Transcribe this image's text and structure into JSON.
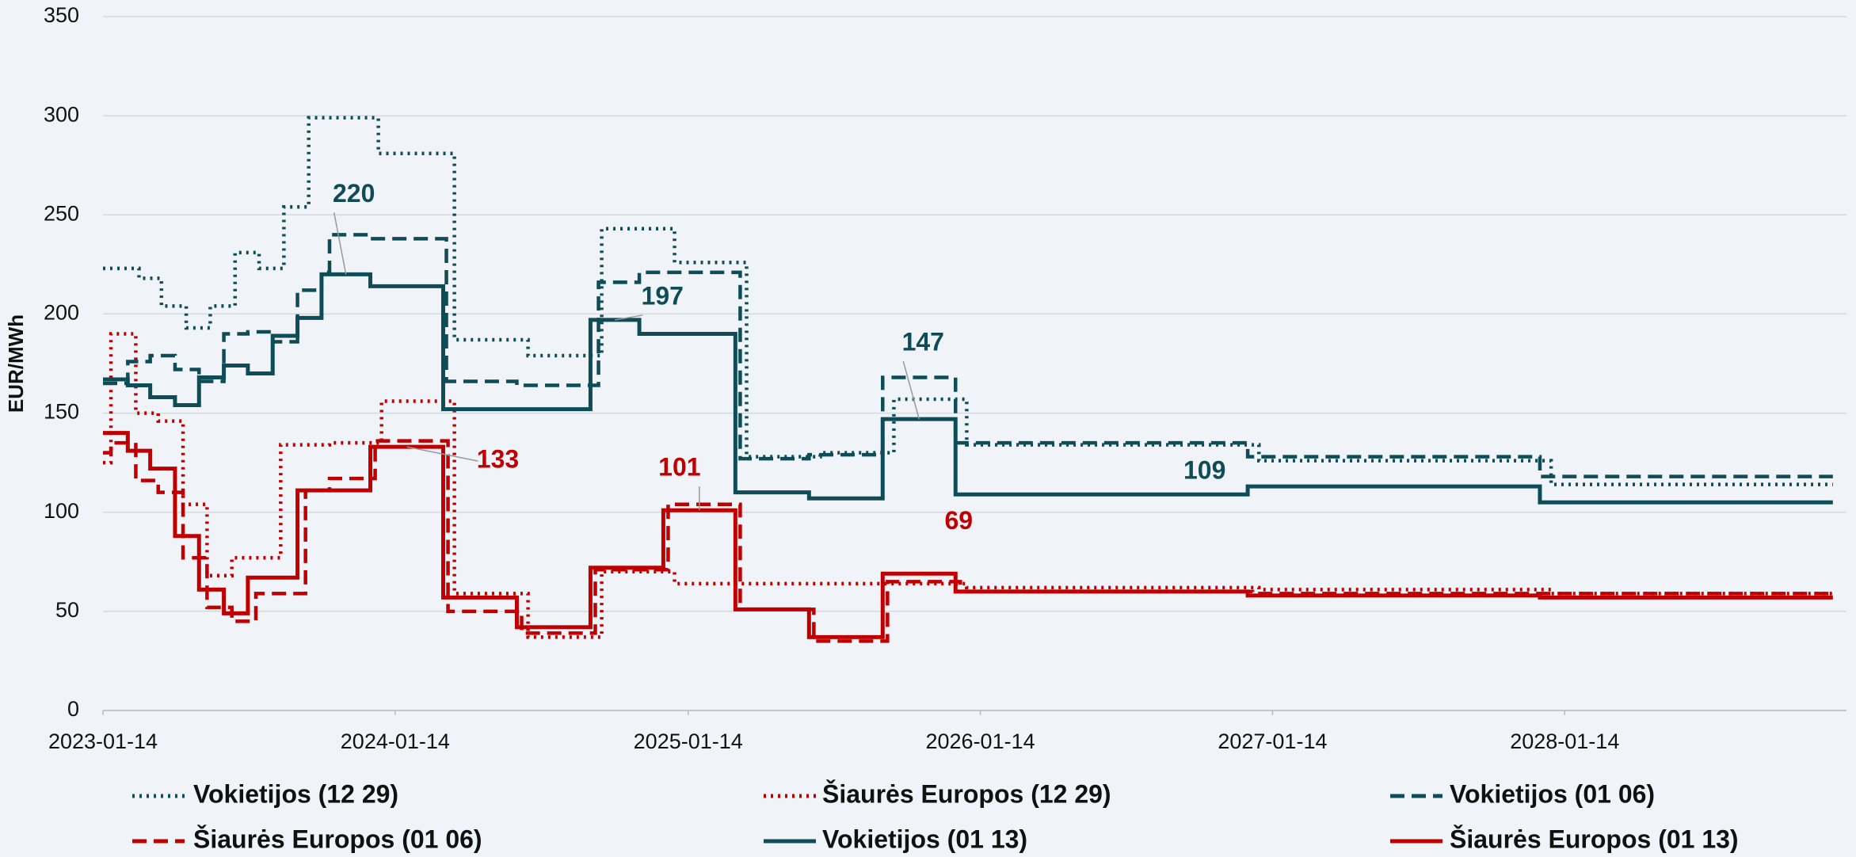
{
  "chart_data": {
    "type": "step-line",
    "ylabel": "EUR/MWh",
    "xlim": [
      "2023-01-14",
      "2028-12-31"
    ],
    "xticks": [
      "2023-01-14",
      "2024-01-14",
      "2025-01-14",
      "2026-01-14",
      "2027-01-14",
      "2028-01-14"
    ],
    "ylim": [
      0,
      350
    ],
    "yticks": [
      0,
      50,
      100,
      150,
      200,
      250,
      300,
      350
    ],
    "grid": true,
    "legend": "bottom",
    "series": [
      {
        "name": "Vokietijos (12 29)",
        "color": "#0e4d57",
        "style": "dotted",
        "x": [
          "2023-01-14",
          "2023-02-28",
          "2023-03-28",
          "2023-04-28",
          "2023-05-28",
          "2023-06-28",
          "2023-07-28",
          "2023-08-28",
          "2023-09-28",
          "2023-12-24",
          "2024-03-28",
          "2024-06-28",
          "2024-09-28",
          "2024-12-28",
          "2025-03-28",
          "2025-06-28",
          "2025-09-28",
          "2025-12-28",
          "2026-12-28",
          "2027-12-28",
          "2028-12-14"
        ],
        "values": [
          223,
          218,
          204,
          193,
          204,
          231,
          223,
          254,
          299,
          281,
          187,
          179,
          243,
          226,
          128,
          130,
          157,
          134,
          126,
          114,
          114
        ]
      },
      {
        "name": "Šiaurės Europos (12 29)",
        "color": "#c00000",
        "style": "dotted",
        "x": [
          "2023-01-14",
          "2023-01-24",
          "2023-02-24",
          "2023-03-24",
          "2023-04-24",
          "2023-05-24",
          "2023-06-24",
          "2023-08-24",
          "2023-10-24",
          "2023-12-28",
          "2024-03-28",
          "2024-06-28",
          "2024-09-28",
          "2024-12-28",
          "2025-12-28",
          "2026-12-28",
          "2027-12-28",
          "2028-12-14"
        ],
        "values": [
          125,
          190,
          150,
          146,
          104,
          68,
          77,
          134,
          135,
          156,
          59,
          37,
          70,
          64,
          62,
          61,
          59,
          60
        ]
      },
      {
        "name": "Vokietijos (01 06)",
        "color": "#0e4d57",
        "style": "dashed",
        "x": [
          "2023-01-14",
          "2023-02-14",
          "2023-03-14",
          "2023-04-14",
          "2023-05-14",
          "2023-06-14",
          "2023-07-14",
          "2023-08-14",
          "2023-09-14",
          "2023-10-14",
          "2023-10-24",
          "2023-12-14",
          "2024-03-18",
          "2024-06-14",
          "2024-09-24",
          "2024-11-14",
          "2025-03-20",
          "2025-06-14",
          "2025-09-14",
          "2025-12-14",
          "2026-12-14",
          "2027-12-14",
          "2028-12-14"
        ],
        "values": [
          165,
          176,
          179,
          172,
          166,
          190,
          191,
          186,
          212,
          221,
          240,
          238,
          166,
          164,
          216,
          221,
          127,
          129,
          168,
          135,
          128,
          118,
          118
        ]
      },
      {
        "name": "Šiaurės Europos (01 06)",
        "color": "#c00000",
        "style": "dashed",
        "x": [
          "2023-01-14",
          "2023-01-24",
          "2023-02-24",
          "2023-03-24",
          "2023-04-24",
          "2023-05-24",
          "2023-06-24",
          "2023-07-24",
          "2023-09-24",
          "2023-10-24",
          "2023-12-20",
          "2024-03-20",
          "2024-06-20",
          "2024-09-20",
          "2024-12-20",
          "2025-03-20",
          "2025-06-20",
          "2025-09-20",
          "2025-12-20",
          "2026-12-20",
          "2027-12-20",
          "2028-12-14"
        ],
        "values": [
          130,
          135,
          116,
          110,
          77,
          52,
          45,
          59,
          111,
          117,
          136,
          50,
          39,
          71,
          104,
          51,
          35,
          65,
          60,
          59,
          59,
          59
        ]
      },
      {
        "name": "Vokietijos (01 13)",
        "color": "#0e4d57",
        "style": "solid",
        "x": [
          "2023-01-14",
          "2023-02-14",
          "2023-03-14",
          "2023-04-14",
          "2023-05-14",
          "2023-06-14",
          "2023-07-14",
          "2023-08-14",
          "2023-09-14",
          "2023-10-14",
          "2023-12-14",
          "2024-03-14",
          "2024-09-14",
          "2024-11-14",
          "2025-03-14",
          "2025-06-14",
          "2025-09-14",
          "2025-12-14",
          "2026-12-14",
          "2027-12-14",
          "2028-12-14"
        ],
        "values": [
          167,
          164,
          158,
          154,
          168,
          174,
          170,
          189,
          198,
          220,
          214,
          152,
          197,
          190,
          110,
          107,
          147,
          109,
          113,
          105,
          105
        ]
      },
      {
        "name": "Šiaurės Europos (01 13)",
        "color": "#c00000",
        "style": "solid",
        "x": [
          "2023-01-14",
          "2023-02-14",
          "2023-03-14",
          "2023-04-14",
          "2023-05-14",
          "2023-06-14",
          "2023-07-14",
          "2023-09-14",
          "2023-12-14",
          "2024-03-14",
          "2024-06-14",
          "2024-09-14",
          "2024-12-14",
          "2025-03-14",
          "2025-06-14",
          "2025-09-14",
          "2025-12-14",
          "2026-12-14",
          "2027-12-14",
          "2028-12-14"
        ],
        "values": [
          140,
          131,
          122,
          88,
          61,
          49,
          67,
          111,
          133,
          57,
          42,
          72,
          101,
          51,
          37,
          69,
          60,
          58,
          57,
          57
        ]
      }
    ],
    "annotations": [
      {
        "series": 4,
        "point": 9
      },
      {
        "series": 4,
        "point": 12
      },
      {
        "series": 4,
        "point": 16
      },
      {
        "series": 4,
        "point": 17
      },
      {
        "series": 5,
        "point": 8
      },
      {
        "series": 5,
        "point": 12
      },
      {
        "series": 5,
        "point": 15
      }
    ]
  }
}
